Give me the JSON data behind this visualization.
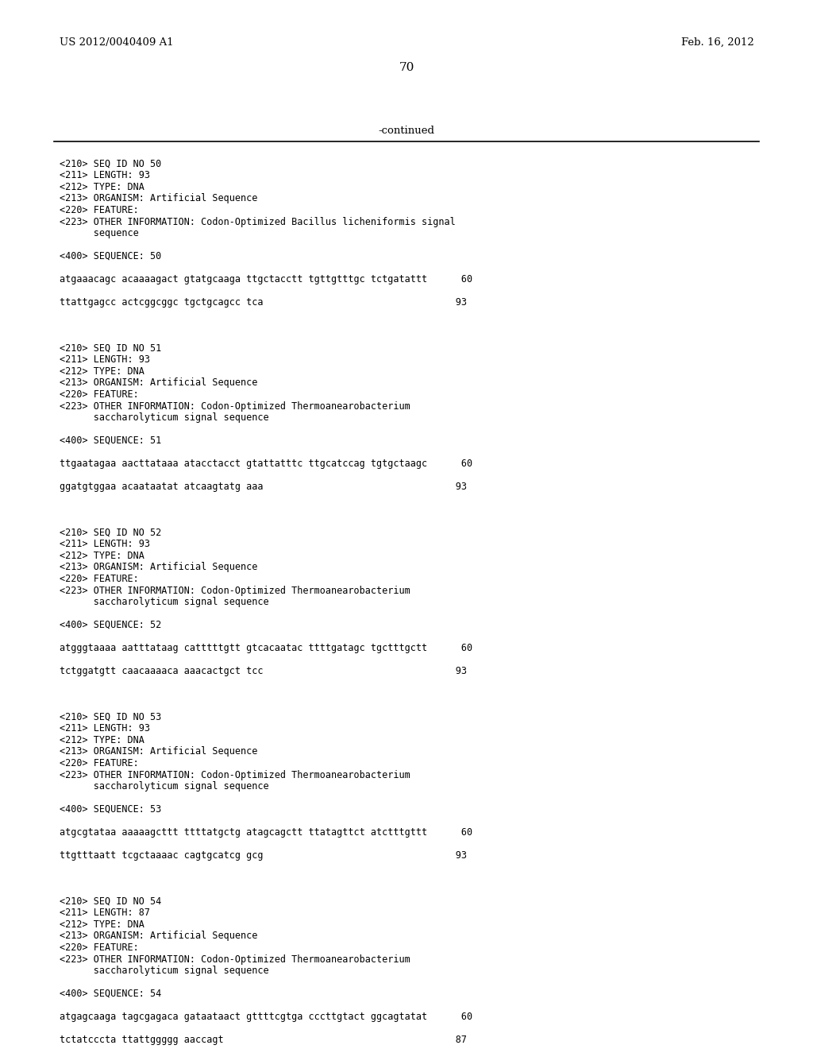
{
  "header_left": "US 2012/0040409 A1",
  "header_right": "Feb. 16, 2012",
  "page_number": "70",
  "continued_label": "-continued",
  "background_color": "#ffffff",
  "text_color": "#000000",
  "header_fontsize": 9.5,
  "page_num_fontsize": 11,
  "continued_fontsize": 9.5,
  "mono_fontsize": 8.5,
  "content_lines": [
    "<210> SEQ ID NO 50",
    "<211> LENGTH: 93",
    "<212> TYPE: DNA",
    "<213> ORGANISM: Artificial Sequence",
    "<220> FEATURE:",
    "<223> OTHER INFORMATION: Codon-Optimized Bacillus licheniformis signal",
    "      sequence",
    "",
    "<400> SEQUENCE: 50",
    "",
    "atgaaacagc acaaaagact gtatgcaaga ttgctacctt tgttgtttgc tctgatattt      60",
    "",
    "ttattgagcc actcggcggc tgctgcagcc tca                                  93",
    "",
    "",
    "",
    "<210> SEQ ID NO 51",
    "<211> LENGTH: 93",
    "<212> TYPE: DNA",
    "<213> ORGANISM: Artificial Sequence",
    "<220> FEATURE:",
    "<223> OTHER INFORMATION: Codon-Optimized Thermoanearobacterium",
    "      saccharolyticum signal sequence",
    "",
    "<400> SEQUENCE: 51",
    "",
    "ttgaatagaa aacttataaa atacctacct gtattatttc ttgcatccag tgtgctaagc      60",
    "",
    "ggatgtggaa acaataatat atcaagtatg aaa                                  93",
    "",
    "",
    "",
    "<210> SEQ ID NO 52",
    "<211> LENGTH: 93",
    "<212> TYPE: DNA",
    "<213> ORGANISM: Artificial Sequence",
    "<220> FEATURE:",
    "<223> OTHER INFORMATION: Codon-Optimized Thermoanearobacterium",
    "      saccharolyticum signal sequence",
    "",
    "<400> SEQUENCE: 52",
    "",
    "atgggtaaaa aatttataag catttttgtt gtcacaatac ttttgatagc tgctttgctt      60",
    "",
    "tctggatgtt caacaaaaca aaacactgct tcc                                  93",
    "",
    "",
    "",
    "<210> SEQ ID NO 53",
    "<211> LENGTH: 93",
    "<212> TYPE: DNA",
    "<213> ORGANISM: Artificial Sequence",
    "<220> FEATURE:",
    "<223> OTHER INFORMATION: Codon-Optimized Thermoanearobacterium",
    "      saccharolyticum signal sequence",
    "",
    "<400> SEQUENCE: 53",
    "",
    "atgcgtataa aaaaagcttt ttttatgctg atagcagctt ttatagttct atctttgttt      60",
    "",
    "ttgtttaatt tcgctaaaac cagtgcatcg gcg                                  93",
    "",
    "",
    "",
    "<210> SEQ ID NO 54",
    "<211> LENGTH: 87",
    "<212> TYPE: DNA",
    "<213> ORGANISM: Artificial Sequence",
    "<220> FEATURE:",
    "<223> OTHER INFORMATION: Codon-Optimized Thermoanearobacterium",
    "      saccharolyticum signal sequence",
    "",
    "<400> SEQUENCE: 54",
    "",
    "atgagcaaga tagcgagaca gataataact gttttcgtga cccttgtact ggcagtatat      60",
    "",
    "tctatcccta ttattggggg aaccagt                                         87"
  ]
}
